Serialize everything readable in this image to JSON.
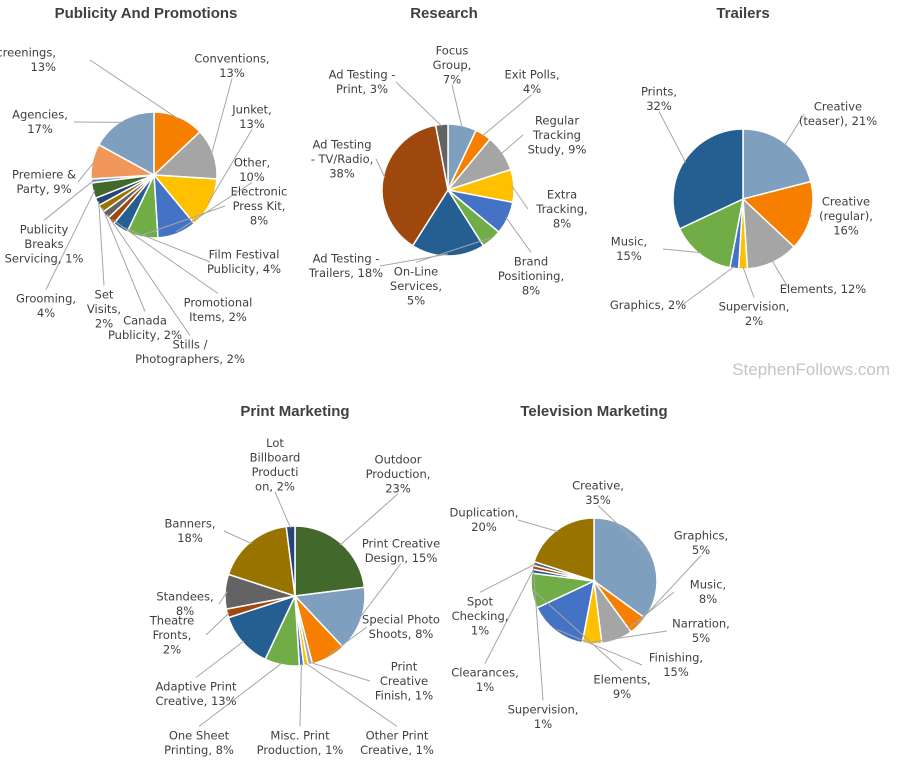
{
  "watermark": "StephenFollows.com",
  "chart_data": [
    {
      "type": "pie",
      "title": "Publicity And Promotions",
      "slices": [
        {
          "name": "Screenings",
          "value": 13,
          "color": "#f77f00",
          "label_lines": [
            "Screenings,",
            "13%"
          ]
        },
        {
          "name": "Conventions",
          "value": 13,
          "color": "#a5a5a5",
          "label_lines": [
            "Conventions,",
            "13%"
          ]
        },
        {
          "name": "Junket",
          "value": 13,
          "color": "#ffc000",
          "label_lines": [
            "Junket,",
            "13%"
          ]
        },
        {
          "name": "Other",
          "value": 10,
          "color": "#4472c4",
          "label_lines": [
            "Other,",
            "10%"
          ]
        },
        {
          "name": "Electronic Press Kit",
          "value": 8,
          "color": "#70ad47",
          "label_lines": [
            "Electronic",
            "Press Kit,",
            "8%"
          ]
        },
        {
          "name": "Film Festival Publicity",
          "value": 4,
          "color": "#255e91",
          "label_lines": [
            "Film Festival",
            "Publicity, 4%"
          ]
        },
        {
          "name": "Promotional Items",
          "value": 2,
          "color": "#9e480e",
          "label_lines": [
            "Promotional",
            "Items, 2%"
          ]
        },
        {
          "name": "Stills / Photographers",
          "value": 2,
          "color": "#636363",
          "label_lines": [
            "Stills /",
            "Photographers, 2%"
          ]
        },
        {
          "name": "Canada Publicity",
          "value": 2,
          "color": "#997300",
          "label_lines": [
            "Canada",
            "Publicity, 2%"
          ]
        },
        {
          "name": "Set Visits",
          "value": 2,
          "color": "#264478",
          "label_lines": [
            "Set",
            "Visits,",
            "2%"
          ]
        },
        {
          "name": "Grooming",
          "value": 4,
          "color": "#43682b",
          "label_lines": [
            "Grooming,",
            "4%"
          ]
        },
        {
          "name": "Publicity Breaks Servicing",
          "value": 1,
          "color": "#698ed0",
          "label_lines": [
            "Publicity",
            "Breaks",
            "Servicing, 1%"
          ]
        },
        {
          "name": "Premiere & Party",
          "value": 9,
          "color": "#f1975a",
          "label_lines": [
            "Premiere &",
            "Party, 9%"
          ]
        },
        {
          "name": "Agencies",
          "value": 17,
          "color": "#7f9fbf",
          "label_lines": [
            "Agencies,",
            "17%"
          ]
        }
      ]
    },
    {
      "type": "pie",
      "title": "Research",
      "slices": [
        {
          "name": "Focus Group",
          "value": 7,
          "color": "#7f9fbf",
          "label_lines": [
            "Focus",
            "Group,",
            "7%"
          ]
        },
        {
          "name": "Exit Polls",
          "value": 4,
          "color": "#f77f00",
          "label_lines": [
            "Exit Polls,",
            "4%"
          ]
        },
        {
          "name": "Regular Tracking Study",
          "value": 9,
          "color": "#a5a5a5",
          "label_lines": [
            "Regular",
            "Tracking",
            "Study, 9%"
          ]
        },
        {
          "name": "Extra Tracking",
          "value": 8,
          "color": "#ffc000",
          "label_lines": [
            "Extra",
            "Tracking,",
            "8%"
          ]
        },
        {
          "name": "Brand Positioning",
          "value": 8,
          "color": "#4472c4",
          "label_lines": [
            "Brand",
            "Positioning,",
            "8%"
          ]
        },
        {
          "name": "On-Line Services",
          "value": 5,
          "color": "#70ad47",
          "label_lines": [
            "On-Line",
            "Services,",
            "5%"
          ]
        },
        {
          "name": "Ad Testing - Trailers",
          "value": 18,
          "color": "#255e91",
          "label_lines": [
            "Ad Testing -",
            "Trailers, 18%"
          ]
        },
        {
          "name": "Ad Testing - TV/Radio",
          "value": 38,
          "color": "#9e480e",
          "label_lines": [
            "Ad Testing",
            "- TV/Radio,",
            "38%"
          ]
        },
        {
          "name": "Ad Testing - Print",
          "value": 3,
          "color": "#636363",
          "label_lines": [
            "Ad Testing -",
            "Print, 3%"
          ]
        }
      ]
    },
    {
      "type": "pie",
      "title": "Trailers",
      "slices": [
        {
          "name": "Creative (teaser)",
          "value": 21,
          "color": "#7f9fbf",
          "label_lines": [
            "Creative",
            "(teaser), 21%"
          ]
        },
        {
          "name": "Creative (regular)",
          "value": 16,
          "color": "#f77f00",
          "label_lines": [
            "Creative",
            "(regular),",
            "16%"
          ]
        },
        {
          "name": "Elements",
          "value": 12,
          "color": "#a5a5a5",
          "label_lines": [
            "Elements, 12%"
          ]
        },
        {
          "name": "Supervision",
          "value": 2,
          "color": "#ffc000",
          "label_lines": [
            "Supervision,",
            "2%"
          ]
        },
        {
          "name": "Graphics",
          "value": 2,
          "color": "#4472c4",
          "label_lines": [
            "Graphics, 2%"
          ]
        },
        {
          "name": "Music",
          "value": 15,
          "color": "#70ad47",
          "label_lines": [
            "Music,",
            "15%"
          ]
        },
        {
          "name": "Prints",
          "value": 32,
          "color": "#255e91",
          "label_lines": [
            "Prints,",
            "32%"
          ]
        }
      ]
    },
    {
      "type": "pie",
      "title": "Print Marketing",
      "slices": [
        {
          "name": "Outdoor Production",
          "value": 23,
          "color": "#43682b",
          "label_lines": [
            "Outdoor",
            "Production,",
            "23%"
          ]
        },
        {
          "name": "Print Creative Design",
          "value": 15,
          "color": "#7f9fbf",
          "label_lines": [
            "Print Creative",
            "Design, 15%"
          ]
        },
        {
          "name": "Special Photo Shoots",
          "value": 8,
          "color": "#f77f00",
          "label_lines": [
            "Special Photo",
            "Shoots, 8%"
          ]
        },
        {
          "name": "Print Creative Finish",
          "value": 1,
          "color": "#a5a5a5",
          "label_lines": [
            "Print",
            "Creative",
            "Finish, 1%"
          ]
        },
        {
          "name": "Other Print Creative",
          "value": 1,
          "color": "#ffc000",
          "label_lines": [
            "Other Print",
            "Creative, 1%"
          ]
        },
        {
          "name": "Misc. Print Production",
          "value": 1,
          "color": "#4472c4",
          "label_lines": [
            "Misc. Print",
            "Production, 1%"
          ]
        },
        {
          "name": "One Sheet Printing",
          "value": 8,
          "color": "#70ad47",
          "label_lines": [
            "One Sheet",
            "Printing, 8%"
          ]
        },
        {
          "name": "Adaptive Print Creative",
          "value": 13,
          "color": "#255e91",
          "label_lines": [
            "Adaptive Print",
            "Creative, 13%"
          ]
        },
        {
          "name": "Theatre Fronts",
          "value": 2,
          "color": "#9e480e",
          "label_lines": [
            "Theatre",
            "Fronts,",
            "2%"
          ]
        },
        {
          "name": "Standees",
          "value": 8,
          "color": "#636363",
          "label_lines": [
            "Standees,",
            "8%"
          ]
        },
        {
          "name": "Banners",
          "value": 18,
          "color": "#997300",
          "label_lines": [
            "Banners,",
            "18%"
          ]
        },
        {
          "name": "Lot Billboard Production",
          "value": 2,
          "color": "#264478",
          "label_lines": [
            "Lot",
            "Billboard",
            "Producti",
            "on, 2%"
          ]
        }
      ]
    },
    {
      "type": "pie",
      "title": "Television Marketing",
      "slices": [
        {
          "name": "Creative",
          "value": 35,
          "color": "#7f9fbf",
          "label_lines": [
            "Creative,",
            "35%"
          ]
        },
        {
          "name": "Graphics",
          "value": 5,
          "color": "#f77f00",
          "label_lines": [
            "Graphics,",
            "5%"
          ]
        },
        {
          "name": "Music",
          "value": 8,
          "color": "#a5a5a5",
          "label_lines": [
            "Music,",
            "8%"
          ]
        },
        {
          "name": "Narration",
          "value": 5,
          "color": "#ffc000",
          "label_lines": [
            "Narration,",
            "5%"
          ]
        },
        {
          "name": "Finishing",
          "value": 15,
          "color": "#4472c4",
          "label_lines": [
            "Finishing,",
            "15%"
          ]
        },
        {
          "name": "Elements",
          "value": 9,
          "color": "#70ad47",
          "label_lines": [
            "Elements,",
            "9%"
          ]
        },
        {
          "name": "Supervision",
          "value": 1,
          "color": "#255e91",
          "label_lines": [
            "Supervision,",
            "1%"
          ]
        },
        {
          "name": "Clearances",
          "value": 1,
          "color": "#9e480e",
          "label_lines": [
            "Clearances,",
            "1%"
          ]
        },
        {
          "name": "Spot Checking",
          "value": 1,
          "color": "#636363",
          "label_lines": [
            "Spot",
            "Checking,",
            "1%"
          ]
        },
        {
          "name": "Duplication",
          "value": 20,
          "color": "#997300",
          "label_lines": [
            "Duplication,",
            "20%"
          ]
        }
      ]
    }
  ]
}
